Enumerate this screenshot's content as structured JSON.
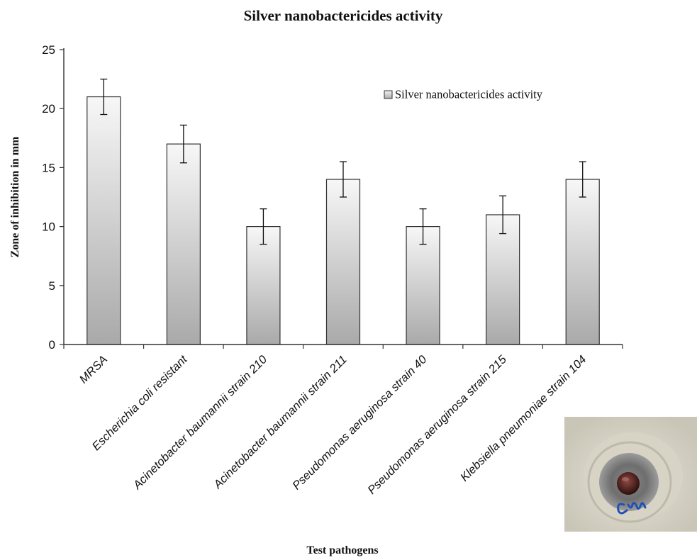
{
  "chart_data": {
    "type": "bar",
    "title": "Silver nanobactericides activity",
    "xlabel": "Test pathogens",
    "ylabel": "Zone of inhibition in mm",
    "categories": [
      "MRSA",
      "Escherichia coli resistant",
      "Acinetobacter baumannii strain 210",
      "Acinetobacter baumannii strain 211",
      "Pseudomonas aeruginosa strain 40",
      "Pseudomonas aeruginosa strain 215",
      "Klebsiella pneumoniae strain 104"
    ],
    "series": [
      {
        "name": "Silver nanobactericides activity",
        "values": [
          21,
          17,
          10,
          14,
          10,
          11,
          14
        ],
        "error": [
          1.5,
          1.6,
          1.5,
          1.5,
          1.5,
          1.6,
          1.5
        ]
      }
    ],
    "ylim": [
      0,
      25
    ],
    "yticks": [
      0,
      5,
      10,
      15,
      20,
      25
    ],
    "grid": false,
    "legend_position": "top-right",
    "colors": {
      "bar_top": "#f7f7f7",
      "bar_bottom": "#a9a9a9",
      "bar_stroke": "#333333",
      "axis": "#333333"
    }
  },
  "inset": {
    "photo": "agar-well-plate-photo",
    "handwriting": "handwritten-label"
  }
}
